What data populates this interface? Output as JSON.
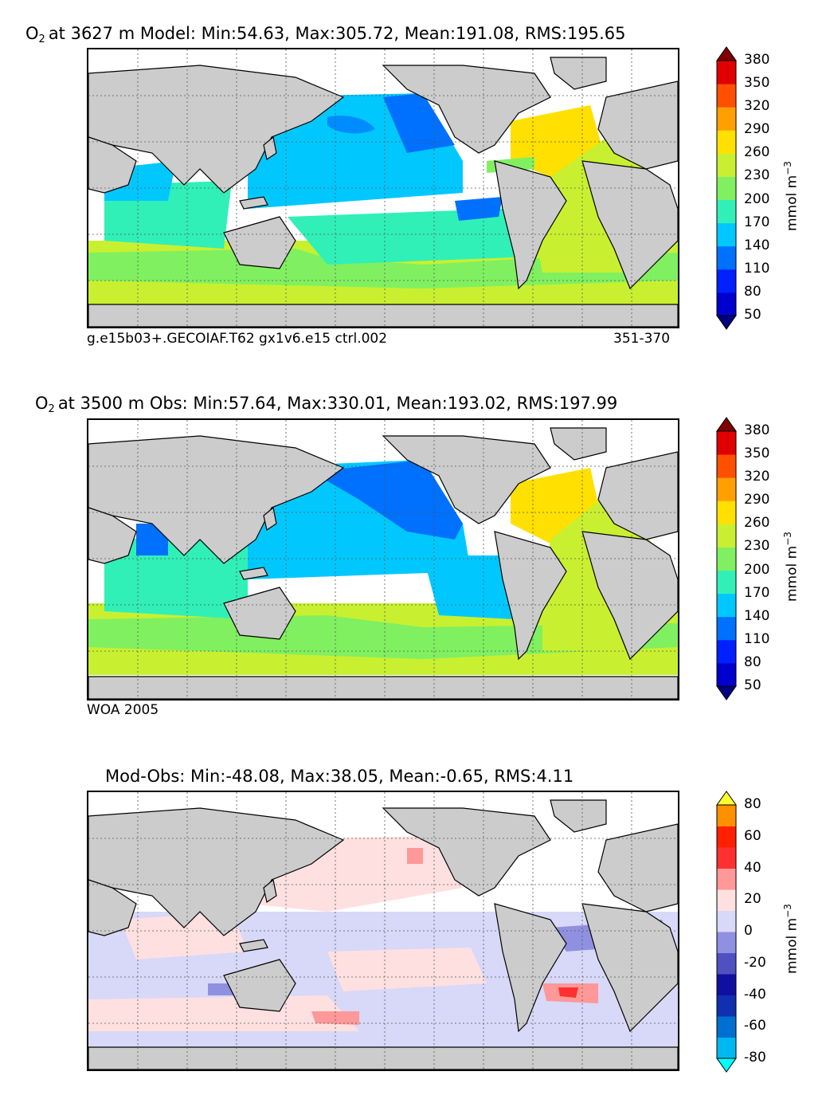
{
  "panels": [
    {
      "title_species": "O",
      "title_sub": "2",
      "title_rest": "at 3627 m Model: Min:54.63, Max:305.72, Mean:191.08, RMS:195.65",
      "caption_left": "g.e15b03+.GECOIAF.T62 gx1v6.e15 ctrl.002",
      "caption_right": "351-370",
      "colorbar": {
        "unit": "mmol m",
        "unit_sup": "−3",
        "ticks": [
          "380",
          "350",
          "320",
          "290",
          "260",
          "230",
          "200",
          "170",
          "140",
          "110",
          "80",
          "50"
        ],
        "colors": [
          "#000080",
          "#0000cd",
          "#0020ff",
          "#0070ff",
          "#00c8ff",
          "#30f0b8",
          "#80f060",
          "#c8f030",
          "#ffe000",
          "#ffa000",
          "#ff5000",
          "#e00000",
          "#800000"
        ]
      }
    },
    {
      "title_species": "O",
      "title_sub": "2",
      "title_rest": "at 3500 m Obs: Min:57.64, Max:330.01, Mean:193.02, RMS:197.99",
      "caption_left": "WOA 2005",
      "caption_right": "",
      "colorbar": {
        "unit": "mmol m",
        "unit_sup": "−3",
        "ticks": [
          "380",
          "350",
          "320",
          "290",
          "260",
          "230",
          "200",
          "170",
          "140",
          "110",
          "80",
          "50"
        ],
        "colors": [
          "#000080",
          "#0000cd",
          "#0020ff",
          "#0070ff",
          "#00c8ff",
          "#30f0b8",
          "#80f060",
          "#c8f030",
          "#ffe000",
          "#ffa000",
          "#ff5000",
          "#e00000",
          "#800000"
        ]
      }
    },
    {
      "title_species": "",
      "title_sub": "",
      "title_rest": "Mod-Obs: Min:-48.08, Max:38.05, Mean:-0.65, RMS:4.11",
      "caption_left": "",
      "caption_right": "",
      "colorbar": {
        "unit": "mmol m",
        "unit_sup": "−3",
        "ticks": [
          "80",
          "60",
          "40",
          "20",
          "0",
          "-20",
          "-40",
          "-60",
          "-80"
        ],
        "colors": [
          "#00ffff",
          "#00b8f0",
          "#0070d0",
          "#1030b0",
          "#1010a0",
          "#5050c0",
          "#9090e0",
          "#d8d8f8",
          "#ffe0e0",
          "#ff9898",
          "#ff3030",
          "#ff2000",
          "#ff9000",
          "#ffff30"
        ]
      }
    }
  ],
  "colors": {
    "land": "#cccccc",
    "missing": "#ffffff",
    "grid": "#555555"
  }
}
